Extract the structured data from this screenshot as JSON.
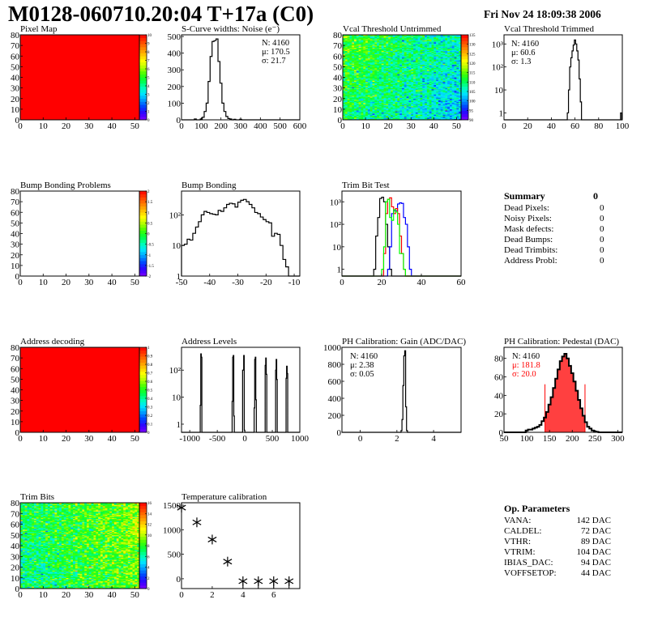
{
  "header": {
    "title": "M0128-060710.20:04 T+17a (C0)",
    "date": "Fri Nov 24 18:09:38 2006"
  },
  "summary": {
    "title": "Summary",
    "total": "0",
    "rows": [
      {
        "label": "Dead Pixels:",
        "value": "0"
      },
      {
        "label": "Noisy Pixels:",
        "value": "0"
      },
      {
        "label": "Mask defects:",
        "value": "0"
      },
      {
        "label": "Dead Bumps:",
        "value": "0"
      },
      {
        "label": "Dead Trimbits:",
        "value": "0"
      },
      {
        "label": "Address Probl:",
        "value": "0"
      }
    ]
  },
  "op_parameters": {
    "title": "Op. Parameters",
    "rows": [
      {
        "label": "VANA:",
        "value": "142 DAC"
      },
      {
        "label": "CALDEL:",
        "value": "72 DAC"
      },
      {
        "label": "VTHR:",
        "value": "89 DAC"
      },
      {
        "label": "VTRIM:",
        "value": "104 DAC"
      },
      {
        "label": "IBIAS_DAC:",
        "value": "94 DAC"
      },
      {
        "label": "VOFFSETOP:",
        "value": "44 DAC"
      }
    ]
  },
  "palette": [
    "#7f00ff",
    "#3300ff",
    "#0040ff",
    "#0099ff",
    "#00e5ff",
    "#00ffb0",
    "#00ff40",
    "#40ff00",
    "#b0ff00",
    "#ffff00",
    "#ffc000",
    "#ff8000",
    "#ff4000",
    "#ff0000"
  ],
  "chart_data": [
    {
      "id": "pixel_map",
      "type": "heatmap",
      "title": "Pixel Map",
      "xlim": [
        0,
        52
      ],
      "ylim": [
        0,
        80
      ],
      "zlim": [
        0,
        10
      ],
      "xticks": [
        0,
        10,
        20,
        30,
        40,
        50
      ],
      "yticks": [
        0,
        10,
        20,
        30,
        40,
        50,
        60,
        70,
        80
      ],
      "zticks": [
        "0",
        "1",
        "2",
        "3",
        "4",
        "5",
        "6",
        "7",
        "8",
        "9",
        "10"
      ],
      "uniform_value": 10
    },
    {
      "id": "scurve",
      "type": "histogram",
      "title": "S-Curve widths: Noise (e⁻)",
      "xlim": [
        0,
        600
      ],
      "ylim": [
        0,
        510
      ],
      "log": false,
      "xticks": [
        0,
        100,
        200,
        300,
        400,
        500,
        600
      ],
      "yticks": [
        {
          "v": 0,
          "t": "0"
        },
        {
          "v": 100,
          "t": "100"
        },
        {
          "v": 200,
          "t": "200"
        },
        {
          "v": 300,
          "t": "300"
        },
        {
          "v": 400,
          "t": "400"
        },
        {
          "v": 500,
          "t": "500"
        }
      ],
      "bin_width": 10,
      "series": [
        {
          "color": "#000000",
          "x": [
            70,
            100,
            110,
            120,
            130,
            140,
            150,
            160,
            170,
            180,
            190,
            200,
            210,
            220,
            230,
            240,
            250,
            270,
            300
          ],
          "y": [
            5,
            5,
            15,
            50,
            100,
            230,
            380,
            470,
            475,
            485,
            350,
            220,
            100,
            50,
            20,
            8,
            5,
            3,
            3
          ]
        }
      ],
      "stats": [
        {
          "label": "N:",
          "value": "4160"
        },
        {
          "label": "μ:",
          "value": "170.5"
        },
        {
          "label": "σ:",
          "value": "21.7"
        }
      ]
    },
    {
      "id": "vcal_untrimmed",
      "type": "heatmap",
      "title": "Vcal Threshold Untrimmed",
      "xlim": [
        0,
        52
      ],
      "ylim": [
        0,
        80
      ],
      "zlim": [
        88,
        137
      ],
      "xticks": [
        0,
        10,
        20,
        30,
        40,
        50
      ],
      "yticks": [
        0,
        10,
        20,
        30,
        40,
        50,
        60,
        70,
        80
      ],
      "zticks": [
        "90",
        "95",
        "100",
        "105",
        "110",
        "115",
        "120",
        "125",
        "130",
        "135"
      ],
      "distribution": {
        "mean": 108,
        "sd": 4,
        "x_gradient": -8,
        "y_gradient": 4
      }
    },
    {
      "id": "vcal_trimmed",
      "type": "histogram",
      "title": "Vcal Threshold Trimmed",
      "xlim": [
        0,
        100
      ],
      "ylim": [
        0.5,
        2500
      ],
      "log": true,
      "xticks": [
        0,
        20,
        40,
        60,
        80,
        100
      ],
      "yticks": [
        {
          "v": 1,
          "t": "1"
        },
        {
          "v": 10,
          "t": "10"
        },
        {
          "v": 100,
          "t": "10²"
        },
        {
          "v": 1000,
          "t": "10³"
        }
      ],
      "bin_width": 1,
      "series": [
        {
          "color": "#000000",
          "x": [
            54,
            55,
            56,
            57,
            58,
            59,
            60,
            61,
            62,
            63,
            64,
            65,
            99
          ],
          "y": [
            1,
            10,
            100,
            250,
            500,
            900,
            1500,
            1000,
            500,
            200,
            30,
            3,
            1
          ]
        }
      ],
      "stats": [
        {
          "label": "N:",
          "value": "4160"
        },
        {
          "label": "μ:",
          "value": "60.6"
        },
        {
          "label": "σ:",
          "value": " 1.3"
        }
      ]
    },
    {
      "id": "bump_problems",
      "type": "heatmap",
      "title": "Bump Bonding Problems",
      "xlim": [
        0,
        52
      ],
      "ylim": [
        0,
        80
      ],
      "zlim": [
        -2,
        2
      ],
      "xticks": [
        0,
        10,
        20,
        30,
        40,
        50
      ],
      "yticks": [
        0,
        10,
        20,
        30,
        40,
        50,
        60,
        70,
        80
      ],
      "zticks": [
        "-2",
        "-1.5",
        "-1",
        "-0.5",
        "0",
        "0.5",
        "1",
        "1.5",
        "2"
      ],
      "empty": true
    },
    {
      "id": "bump_bonding",
      "type": "histogram",
      "title": "Bump Bonding",
      "xlim": [
        -50,
        -8
      ],
      "ylim": [
        1,
        600
      ],
      "log": true,
      "xticks": [
        -50,
        -40,
        -30,
        -20,
        -10
      ],
      "yticks": [
        {
          "v": 1,
          "t": "1"
        },
        {
          "v": 10,
          "t": "10"
        },
        {
          "v": 100,
          "t": "10²"
        }
      ],
      "bin_width": 1,
      "series": [
        {
          "color": "#000000",
          "x": [
            -49.5,
            -48.5,
            -47.5,
            -46.5,
            -45.5,
            -44.5,
            -43.5,
            -42.5,
            -41.5,
            -40.5,
            -39.5,
            -38.5,
            -37.5,
            -36.5,
            -35.5,
            -34.5,
            -33.5,
            -32.5,
            -31.5,
            -30.5,
            -29.5,
            -28.5,
            -27.5,
            -26.5,
            -25.5,
            -24.5,
            -23.5,
            -22.5,
            -21.5,
            -20.5,
            -19.5,
            -18.5,
            -17.5,
            -16.5,
            -15.5,
            -14.5,
            -13.5,
            -12.5
          ],
          "y": [
            10,
            11,
            16,
            15,
            25,
            40,
            60,
            100,
            130,
            120,
            110,
            105,
            100,
            140,
            130,
            170,
            220,
            240,
            230,
            180,
            260,
            300,
            320,
            270,
            220,
            170,
            120,
            110,
            85,
            70,
            60,
            55,
            20,
            25,
            23,
            10,
            3.5,
            2
          ]
        }
      ]
    },
    {
      "id": "trim_bit_test",
      "type": "histogram",
      "title": "Trim Bit Test",
      "xlim": [
        0,
        60
      ],
      "ylim": [
        0.5,
        3000
      ],
      "log": true,
      "xticks": [
        0,
        20,
        40,
        60
      ],
      "yticks": [
        {
          "v": 1,
          "t": "1"
        },
        {
          "v": 10,
          "t": "10"
        },
        {
          "v": 100,
          "t": "10²"
        },
        {
          "v": 1000,
          "t": "10³"
        }
      ],
      "bin_width": 1,
      "series": [
        {
          "color": "#000000",
          "x": [
            16.5,
            17.5,
            18.5,
            19.5,
            20.5,
            21.5,
            22.5,
            23.5,
            24.5
          ],
          "y": [
            1,
            30,
            200,
            1400,
            1600,
            1000,
            100,
            10,
            1
          ]
        },
        {
          "color": "#0000ff",
          "x": [
            23.5,
            24.5,
            25.5,
            26.5,
            27.5,
            28.5,
            29.5,
            30.5,
            31.5,
            32.5,
            33.5,
            34.5
          ],
          "y": [
            1,
            10,
            300,
            400,
            400,
            800,
            900,
            850,
            200,
            100,
            10,
            1
          ]
        },
        {
          "color": "#ff0000",
          "x": [
            21.5,
            22.5,
            23.5,
            24.5,
            25.5,
            26.5,
            27.5,
            28.5,
            29.5,
            30.5,
            31.5
          ],
          "y": [
            5,
            300,
            1300,
            1500,
            600,
            300,
            500,
            300,
            30,
            5,
            1
          ]
        },
        {
          "color": "#00ff00",
          "x": [
            20.5,
            21.5,
            22.5,
            23.5,
            24.5,
            25.5,
            26.5,
            27.5,
            28.5,
            29.5,
            30.5,
            31.5
          ],
          "y": [
            1,
            10,
            1000,
            1300,
            200,
            150,
            450,
            350,
            100,
            5,
            5,
            1
          ]
        }
      ]
    },
    {
      "id": "address_decoding",
      "type": "heatmap",
      "title": "Address decoding",
      "xlim": [
        0,
        52
      ],
      "ylim": [
        0,
        80
      ],
      "zlim": [
        0,
        1
      ],
      "xticks": [
        0,
        10,
        20,
        30,
        40,
        50
      ],
      "yticks": [
        0,
        10,
        20,
        30,
        40,
        50,
        60,
        70,
        80
      ],
      "zticks": [
        "0",
        "0.1",
        "0.2",
        "0.3",
        "0.4",
        "0.5",
        "0.6",
        "0.7",
        "0.8",
        "0.9",
        "1"
      ],
      "uniform_value": 1
    },
    {
      "id": "address_levels",
      "type": "histogram",
      "title": "Address Levels",
      "xlim": [
        -1150,
        1000
      ],
      "ylim": [
        0.5,
        700
      ],
      "log": true,
      "xticks": [
        -1000,
        -500,
        0,
        500,
        1000
      ],
      "yticks": [
        {
          "v": 1,
          "t": "1"
        },
        {
          "v": 10,
          "t": "10"
        },
        {
          "v": 100,
          "t": "10²"
        }
      ],
      "bin_width": 10,
      "series": [
        {
          "color": "#000000",
          "x": [
            -805,
            -795,
            -785,
            -225,
            -215,
            -205,
            -195,
            -35,
            -25,
            -15,
            -5,
            175,
            185,
            195,
            205,
            375,
            385,
            395,
            565,
            575,
            585,
            755,
            765,
            775
          ],
          "y": [
            5,
            400,
            300,
            7,
            300,
            350,
            2,
            100,
            100,
            350,
            0.6,
            4,
            250,
            300,
            8,
            150,
            280,
            70,
            100,
            250,
            45,
            50,
            140,
            75
          ]
        }
      ]
    },
    {
      "id": "ph_gain",
      "type": "histogram",
      "title": "PH Calibration: Gain (ADC/DAC)",
      "xlim": [
        -1,
        5.5
      ],
      "ylim": [
        0,
        1000
      ],
      "log": false,
      "xticks": [
        0,
        2,
        4
      ],
      "yticks": [
        {
          "v": 0,
          "t": "0"
        },
        {
          "v": 200,
          "t": "200"
        },
        {
          "v": 400,
          "t": "400"
        },
        {
          "v": 600,
          "t": "600"
        },
        {
          "v": 800,
          "t": "800"
        },
        {
          "v": 1000,
          "t": "1000"
        }
      ],
      "bin_width": 0.05,
      "series": [
        {
          "color": "#000000",
          "x": [
            2.25,
            2.3,
            2.35,
            2.4,
            2.45,
            2.5,
            2.55
          ],
          "y": [
            20,
            150,
            550,
            900,
            960,
            300,
            20
          ]
        }
      ],
      "stats": [
        {
          "label": "N:",
          "value": "4160"
        },
        {
          "label": "μ:",
          "value": "2.38"
        },
        {
          "label": "σ:",
          "value": "0.05"
        }
      ]
    },
    {
      "id": "ph_pedestal",
      "type": "histogram",
      "title": "PH Calibration: Pedestal (DAC)",
      "xlim": [
        50,
        310
      ],
      "ylim": [
        0,
        92
      ],
      "log": false,
      "xticks": [
        50,
        100,
        150,
        200,
        250,
        300
      ],
      "yticks": [
        {
          "v": 0,
          "t": "0"
        },
        {
          "v": 20,
          "t": "20"
        },
        {
          "v": 40,
          "t": "40"
        },
        {
          "v": 60,
          "t": "60"
        },
        {
          "v": 80,
          "t": "80"
        }
      ],
      "bin_width": 5,
      "series": [
        {
          "color": "#000000",
          "x": [
            100,
            105,
            110,
            115,
            120,
            125,
            130,
            135,
            140,
            145,
            150,
            155,
            160,
            165,
            170,
            175,
            180,
            185,
            190,
            195,
            200,
            205,
            210,
            215,
            220,
            225,
            230,
            235,
            240,
            245,
            250,
            255
          ],
          "y": [
            2,
            3,
            3,
            4,
            5,
            6,
            8,
            12,
            16,
            22,
            30,
            38,
            48,
            58,
            68,
            77,
            82,
            85,
            80,
            72,
            64,
            55,
            45,
            35,
            26,
            18,
            11,
            6,
            4,
            2,
            1,
            0.5
          ]
        }
      ],
      "fit": {
        "color": "#ff0000",
        "range": [
          140,
          228
        ],
        "line_height": 52
      },
      "stats": [
        {
          "label": "N:",
          "value": "4160",
          "color": "#000000"
        },
        {
          "label": "μ:",
          "value": "181.8",
          "color": "#ff0000"
        },
        {
          "label": "σ:",
          "value": "20.0",
          "color": "#ff0000"
        }
      ]
    },
    {
      "id": "trim_bits",
      "type": "heatmap",
      "title": "Trim Bits",
      "xlim": [
        0,
        52
      ],
      "ylim": [
        0,
        80
      ],
      "zlim": [
        0,
        16
      ],
      "xticks": [
        0,
        10,
        20,
        30,
        40,
        50
      ],
      "yticks": [
        0,
        10,
        20,
        30,
        40,
        50,
        60,
        70,
        80
      ],
      "zticks": [
        "0",
        "2",
        "4",
        "6",
        "8",
        "10",
        "12",
        "14",
        "16"
      ],
      "distribution": {
        "mean": 8,
        "sd": 1.4,
        "x_gradient": 2.5,
        "y_gradient": 0.5
      }
    },
    {
      "id": "temperature",
      "type": "scatter",
      "title": "Temperature calibration",
      "xlim": [
        0,
        7.7
      ],
      "ylim": [
        -200,
        1550
      ],
      "log": false,
      "xticks": [
        0,
        2,
        4,
        6
      ],
      "yticks": [
        {
          "v": 0,
          "t": "0"
        },
        {
          "v": 500,
          "t": "500"
        },
        {
          "v": 1000,
          "t": "1000"
        },
        {
          "v": 1500,
          "t": "1500"
        }
      ],
      "points": {
        "x": [
          0,
          1,
          2,
          3,
          4,
          5,
          6,
          7
        ],
        "y": [
          1450,
          1150,
          800,
          350,
          -50,
          -50,
          -50,
          -50
        ]
      }
    }
  ]
}
